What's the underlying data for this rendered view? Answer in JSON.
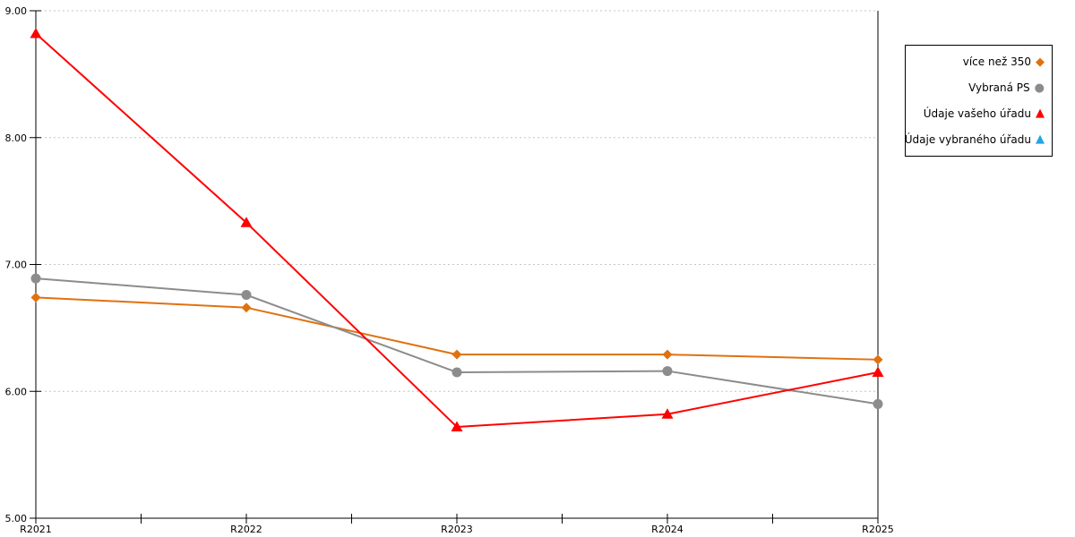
{
  "chart_data": {
    "type": "line",
    "title": "",
    "xlabel": "",
    "ylabel": "",
    "categories": [
      "R2021",
      "R2022",
      "R2023",
      "R2024",
      "R2025"
    ],
    "series": [
      {
        "name": "více než 350",
        "marker": "diamond",
        "color": "#E0710F",
        "values": [
          6.74,
          6.66,
          6.29,
          6.29,
          6.25
        ]
      },
      {
        "name": "Vybraná PS",
        "marker": "circle",
        "color": "#8C8C8C",
        "values": [
          6.89,
          6.76,
          6.15,
          6.16,
          5.9
        ]
      },
      {
        "name": "Údaje vašeho úřadu",
        "marker": "triangle",
        "color": "#FF0000",
        "values": [
          8.82,
          7.33,
          5.72,
          5.82,
          6.15
        ]
      },
      {
        "name": "Údaje vybraného úřadu",
        "marker": "triangle",
        "color": "#1FA7E3",
        "values": []
      }
    ],
    "ylim": [
      5,
      9
    ],
    "ytick_values": [
      9,
      8,
      7,
      6,
      5
    ],
    "ytick_labels": [
      "9.00",
      "8.00",
      "7.00",
      "6.00",
      "5.00"
    ],
    "grid": "horizontal dotted",
    "legend_position": "right"
  },
  "colors": {
    "background": "#FFFFFF",
    "axis": "#000000",
    "gridline": "#C6C6C6",
    "tick_label": "#000000",
    "legend_border": "#000000"
  }
}
